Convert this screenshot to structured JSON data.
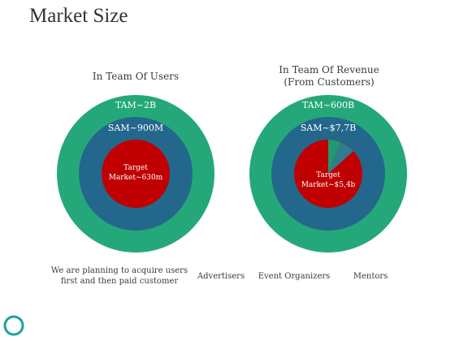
{
  "page": {
    "title": "Market Size"
  },
  "panels": [
    {
      "heading": [
        "In Team Of Users"
      ],
      "tam_label": "TAM~2B",
      "sam_label": "SAM~900M",
      "target_label": [
        "Target",
        "Market~630m"
      ]
    },
    {
      "heading": [
        "In Team Of Revenue",
        "(From Customers)"
      ],
      "tam_label": "TAM~600B",
      "sam_label": "SAM~$7,7B",
      "target_label": [
        "Target",
        "Market~$5,4b"
      ]
    }
  ],
  "captions": {
    "c1_line1": "We are planning to acquire users",
    "c1_line2": "first and then paid customer",
    "c2": "Advertisers",
    "c3": "Event Organizers",
    "c4": "Mentors"
  },
  "colors": {
    "tam": "#25a879",
    "sam": "#24678c",
    "target": "#c00000",
    "slice_green": "#1f9a6e",
    "slice_blue": "#24678c",
    "accent_ring": "#1aa39a"
  },
  "icons": {
    "corner": "circle-outline-icon"
  }
}
